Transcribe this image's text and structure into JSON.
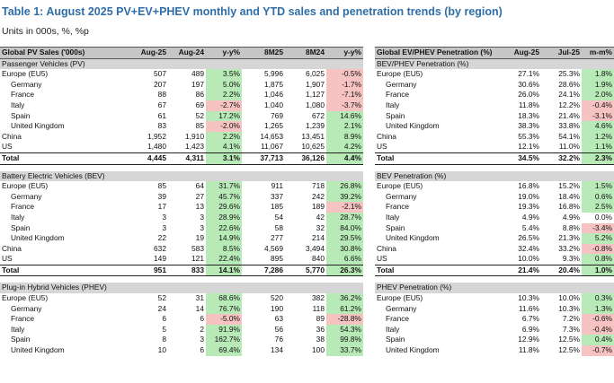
{
  "title": "Table 1: August 2025 PV+EV+PHEV monthly and YTD sales and penetration trends (by region)",
  "subtitle": "Units in 000s, %, %p",
  "colors": {
    "positive": "#b8eab8",
    "negative": "#f6c2c2",
    "title": "#2f6ea8",
    "header": "#c6c6c6"
  },
  "left_table": {
    "headers": [
      "Global PV Sales ('000s)",
      "Aug-25",
      "Aug-24",
      "y-y%",
      "8M25",
      "8M24",
      "y-y%"
    ],
    "sections": [
      {
        "name": "Passenger Vehicles (PV)",
        "rows": [
          {
            "label": "Europe (EU5)",
            "indent": false,
            "cells": [
              "507",
              "489",
              "3.5%",
              "5,996",
              "6,025",
              "-0.5%"
            ]
          },
          {
            "label": "Germany",
            "indent": true,
            "cells": [
              "207",
              "197",
              "5.0%",
              "1,875",
              "1,907",
              "-1.7%"
            ]
          },
          {
            "label": "France",
            "indent": true,
            "cells": [
              "88",
              "86",
              "2.2%",
              "1,046",
              "1,127",
              "-7.1%"
            ]
          },
          {
            "label": "Italy",
            "indent": true,
            "cells": [
              "67",
              "69",
              "-2.7%",
              "1,040",
              "1,080",
              "-3.7%"
            ]
          },
          {
            "label": "Spain",
            "indent": true,
            "cells": [
              "61",
              "52",
              "17.2%",
              "769",
              "672",
              "14.6%"
            ]
          },
          {
            "label": "United Kingdom",
            "indent": true,
            "cells": [
              "83",
              "85",
              "-2.0%",
              "1,265",
              "1,239",
              "2.1%"
            ]
          },
          {
            "label": "China",
            "indent": false,
            "cells": [
              "1,952",
              "1,910",
              "2.2%",
              "14,653",
              "13,451",
              "8.9%"
            ]
          },
          {
            "label": "US",
            "indent": false,
            "cells": [
              "1,480",
              "1,423",
              "4.1%",
              "11,067",
              "10,625",
              "4.2%"
            ]
          }
        ],
        "total": {
          "label": "Total",
          "cells": [
            "4,445",
            "4,311",
            "3.1%",
            "37,713",
            "36,126",
            "4.4%"
          ]
        }
      },
      {
        "name": "Battery Electric Vehicles (BEV)",
        "rows": [
          {
            "label": "Europe (EU5)",
            "indent": false,
            "cells": [
              "85",
              "64",
              "31.7%",
              "911",
              "718",
              "26.8%"
            ]
          },
          {
            "label": "Germany",
            "indent": true,
            "cells": [
              "39",
              "27",
              "45.7%",
              "337",
              "242",
              "39.2%"
            ]
          },
          {
            "label": "France",
            "indent": true,
            "cells": [
              "17",
              "13",
              "29.6%",
              "185",
              "189",
              "-2.1%"
            ]
          },
          {
            "label": "Italy",
            "indent": true,
            "cells": [
              "3",
              "3",
              "28.9%",
              "54",
              "42",
              "28.7%"
            ]
          },
          {
            "label": "Spain",
            "indent": true,
            "cells": [
              "3",
              "3",
              "22.6%",
              "58",
              "32",
              "84.0%"
            ]
          },
          {
            "label": "United Kingdom",
            "indent": true,
            "cells": [
              "22",
              "19",
              "14.9%",
              "277",
              "214",
              "29.5%"
            ]
          },
          {
            "label": "China",
            "indent": false,
            "cells": [
              "632",
              "583",
              "8.5%",
              "4,569",
              "3,494",
              "30.8%"
            ]
          },
          {
            "label": "US",
            "indent": false,
            "cells": [
              "149",
              "121",
              "22.4%",
              "895",
              "840",
              "6.6%"
            ]
          }
        ],
        "total": {
          "label": "Total",
          "cells": [
            "951",
            "833",
            "14.1%",
            "7,286",
            "5,770",
            "26.3%"
          ]
        }
      },
      {
        "name": "Plug-in Hybrid Vehicles (PHEV)",
        "rows": [
          {
            "label": "Europe (EU5)",
            "indent": false,
            "cells": [
              "52",
              "31",
              "68.6%",
              "520",
              "382",
              "36.2%"
            ]
          },
          {
            "label": "Germany",
            "indent": true,
            "cells": [
              "24",
              "14",
              "76.7%",
              "190",
              "118",
              "61.2%"
            ]
          },
          {
            "label": "France",
            "indent": true,
            "cells": [
              "6",
              "6",
              "-5.0%",
              "63",
              "89",
              "-28.8%"
            ]
          },
          {
            "label": "Italy",
            "indent": true,
            "cells": [
              "5",
              "2",
              "91.9%",
              "56",
              "36",
              "54.3%"
            ]
          },
          {
            "label": "Spain",
            "indent": true,
            "cells": [
              "8",
              "3",
              "162.7%",
              "76",
              "38",
              "99.8%"
            ]
          },
          {
            "label": "United Kingdom",
            "indent": true,
            "cells": [
              "10",
              "6",
              "69.4%",
              "134",
              "100",
              "33.7%"
            ]
          }
        ]
      }
    ]
  },
  "right_table": {
    "headers": [
      "Global EV/PHEV Penetration (%)",
      "Aug-25",
      "Jul-25",
      "m-m%"
    ],
    "sections": [
      {
        "name": "BEV/PHEV Penetration (%)",
        "rows": [
          {
            "label": "Europe (EU5)",
            "indent": false,
            "cells": [
              "27.1%",
              "25.3%",
              "1.8%"
            ]
          },
          {
            "label": "Germany",
            "indent": true,
            "cells": [
              "30.6%",
              "28.6%",
              "1.9%"
            ]
          },
          {
            "label": "France",
            "indent": true,
            "cells": [
              "26.0%",
              "24.1%",
              "2.0%"
            ]
          },
          {
            "label": "Italy",
            "indent": true,
            "cells": [
              "11.8%",
              "12.2%",
              "-0.4%"
            ]
          },
          {
            "label": "Spain",
            "indent": true,
            "cells": [
              "18.3%",
              "21.4%",
              "-3.1%"
            ]
          },
          {
            "label": "United Kingdom",
            "indent": true,
            "cells": [
              "38.3%",
              "33.8%",
              "4.6%"
            ]
          },
          {
            "label": "China",
            "indent": false,
            "cells": [
              "55.3%",
              "54.1%",
              "1.2%"
            ]
          },
          {
            "label": "US",
            "indent": false,
            "cells": [
              "12.1%",
              "11.0%",
              "1.1%"
            ]
          }
        ],
        "total": {
          "label": "Total",
          "cells": [
            "34.5%",
            "32.2%",
            "2.3%"
          ]
        }
      },
      {
        "name": "BEV Penetration (%)",
        "rows": [
          {
            "label": "Europe (EU5)",
            "indent": false,
            "cells": [
              "16.8%",
              "15.2%",
              "1.5%"
            ]
          },
          {
            "label": "Germany",
            "indent": true,
            "cells": [
              "19.0%",
              "18.4%",
              "0.6%"
            ]
          },
          {
            "label": "France",
            "indent": true,
            "cells": [
              "19.3%",
              "16.8%",
              "2.5%"
            ]
          },
          {
            "label": "Italy",
            "indent": true,
            "cells": [
              "4.9%",
              "4.9%",
              "0.0%"
            ]
          },
          {
            "label": "Spain",
            "indent": true,
            "cells": [
              "5.4%",
              "8.8%",
              "-3.4%"
            ]
          },
          {
            "label": "United Kingdom",
            "indent": true,
            "cells": [
              "26.5%",
              "21.3%",
              "5.2%"
            ]
          },
          {
            "label": "China",
            "indent": false,
            "cells": [
              "32.4%",
              "33.2%",
              "-0.8%"
            ]
          },
          {
            "label": "US",
            "indent": false,
            "cells": [
              "10.0%",
              "9.3%",
              "0.8%"
            ]
          }
        ],
        "total": {
          "label": "Total",
          "cells": [
            "21.4%",
            "20.4%",
            "1.0%"
          ]
        }
      },
      {
        "name": "PHEV Penetration (%)",
        "rows": [
          {
            "label": "Europe (EU5)",
            "indent": false,
            "cells": [
              "10.3%",
              "10.0%",
              "0.3%"
            ]
          },
          {
            "label": "Germany",
            "indent": true,
            "cells": [
              "11.6%",
              "10.3%",
              "1.3%"
            ]
          },
          {
            "label": "France",
            "indent": true,
            "cells": [
              "6.7%",
              "7.2%",
              "-0.6%"
            ]
          },
          {
            "label": "Italy",
            "indent": true,
            "cells": [
              "6.9%",
              "7.3%",
              "-0.4%"
            ]
          },
          {
            "label": "Spain",
            "indent": true,
            "cells": [
              "12.9%",
              "12.5%",
              "0.4%"
            ]
          },
          {
            "label": "United Kingdom",
            "indent": true,
            "cells": [
              "11.8%",
              "12.5%",
              "-0.7%"
            ]
          }
        ]
      }
    ]
  }
}
